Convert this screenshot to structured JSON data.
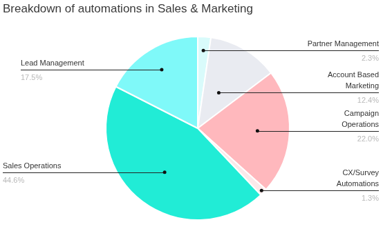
{
  "chart_data": {
    "type": "pie",
    "title": "Breakdown of automations in Sales & Marketing",
    "categories": [
      "Partner Management",
      "Account Based Marketing",
      "Campaign Operations",
      "CX/Survey Automations",
      "Sales Operations",
      "Lead Management"
    ],
    "values": [
      2.3,
      12.4,
      22.0,
      1.3,
      44.6,
      17.5
    ],
    "value_labels": [
      "2.3%",
      "12.4%",
      "22.0%",
      "1.3%",
      "44.6%",
      "17.5%"
    ],
    "colors": [
      "#d9fbfb",
      "#e9ebf1",
      "#ffb8bd",
      "#fbe9ea",
      "#21ecd6",
      "#7ff9f9"
    ],
    "data_labels": true
  }
}
